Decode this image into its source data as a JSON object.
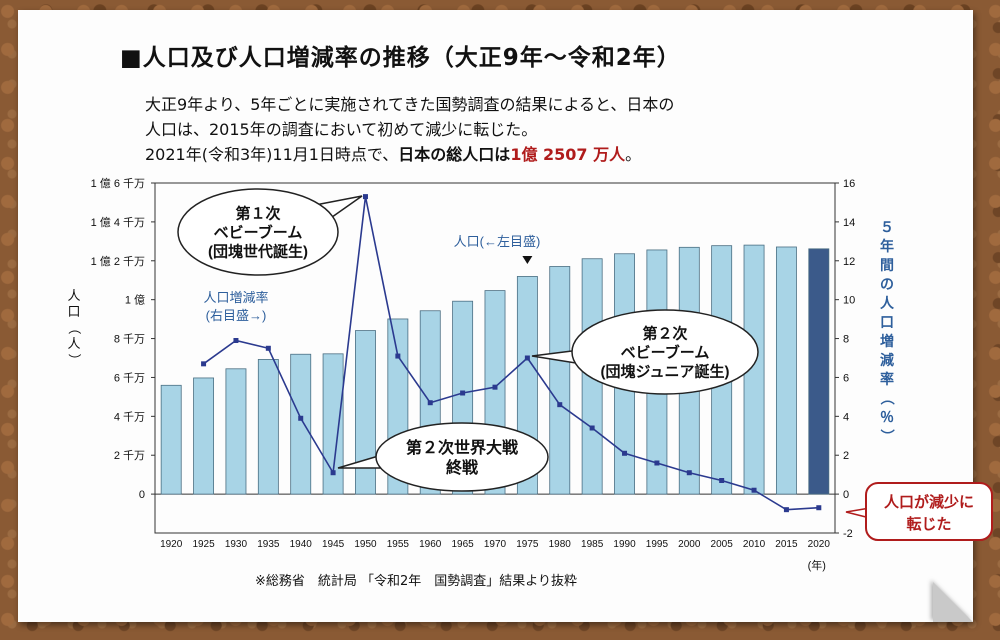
{
  "title": "■人口及び人口増減率の推移（大正9年～令和2年）",
  "desc": {
    "line1": "大正9年より、5年ごとに実施されてきた国勢調査の結果によると、日本の",
    "line2": "人口は、2015年の調査において初めて減少に転じた。",
    "line3a": "2021年(令和3年)11月1日時点で、",
    "line3b": "日本の総人口は",
    "line3c": "1億 2507 万人",
    "line3d": "。"
  },
  "source": "※総務省　統計局 「令和2年　国勢調査」結果より抜粋",
  "colors": {
    "bar": "#a8d4e6",
    "bar_highlight": "#3b5a8a",
    "line": "#2b3a8f",
    "label_blue": "#2e5f9c",
    "accent_red": "#b01c1c"
  },
  "callouts": {
    "baby_boom_1": [
      "第１次",
      "ベビーブーム",
      "(団塊世代誕生)"
    ],
    "war_end": [
      "第２次世界大戦",
      "終戦"
    ],
    "baby_boom_2": [
      "第２次",
      "ベビーブーム",
      "(団塊ジュニア誕生)"
    ],
    "decline": [
      "人口が減少に",
      "転じた"
    ]
  },
  "chart_data": {
    "type": "bar+line",
    "categories": [
      "1920",
      "1925",
      "1930",
      "1935",
      "1940",
      "1945",
      "1950",
      "1955",
      "1960",
      "1965",
      "1970",
      "1975",
      "1980",
      "1985",
      "1990",
      "1995",
      "2000",
      "2005",
      "2010",
      "2015",
      "2020"
    ],
    "x_unit_label": "(年)",
    "series": [
      {
        "name": "人口(←左目盛)",
        "type": "bar",
        "axis": "left",
        "values": [
          55963053,
          59736822,
          64450005,
          69254148,
          71933000,
          72147030,
          84114574,
          90076594,
          94301623,
          99209137,
          104665171,
          111939643,
          117060396,
          121048923,
          123611167,
          125570246,
          126925843,
          127767994,
          128057352,
          127094745,
          126146099
        ]
      },
      {
        "name": "人口増減率(右目盛→)",
        "type": "line",
        "axis": "right",
        "values": [
          null,
          6.7,
          7.9,
          7.5,
          3.9,
          1.1,
          15.3,
          7.1,
          4.7,
          5.2,
          5.5,
          7.0,
          4.6,
          3.4,
          2.1,
          1.6,
          1.1,
          0.7,
          0.2,
          -0.8,
          -0.7
        ]
      }
    ],
    "y_left": {
      "label": "人口（人）",
      "ylim": [
        -20000000,
        160000000
      ],
      "ticks": [
        {
          "value": 0,
          "label": "0"
        },
        {
          "value": 20000000,
          "label": "2 千万"
        },
        {
          "value": 40000000,
          "label": "4 千万"
        },
        {
          "value": 60000000,
          "label": "6 千万"
        },
        {
          "value": 80000000,
          "label": "8 千万"
        },
        {
          "value": 100000000,
          "label": "1 億"
        },
        {
          "value": 120000000,
          "label": "1 億 2 千万"
        },
        {
          "value": 140000000,
          "label": "1 億 4 千万"
        },
        {
          "value": 160000000,
          "label": "1 億 6 千万"
        }
      ]
    },
    "y_right": {
      "label": "５年間の人口増減率（％）",
      "ylim": [
        -2,
        16
      ],
      "ticks": [
        -2,
        0,
        2,
        4,
        6,
        8,
        10,
        12,
        14,
        16
      ]
    },
    "grid": false,
    "highlight_last_bar": true
  }
}
